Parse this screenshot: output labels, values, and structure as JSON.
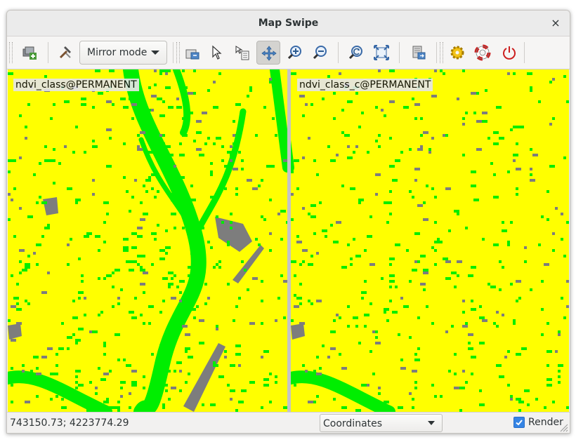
{
  "window": {
    "title": "Map Swipe",
    "close_glyph": "×"
  },
  "toolbar": {
    "items": [
      {
        "name": "add-raster-icon",
        "tooltip": ""
      },
      {
        "name": "tools-icon",
        "tooltip": ""
      },
      {
        "name": "query-icon",
        "tooltip": ""
      },
      {
        "name": "pointer-icon",
        "tooltip": ""
      },
      {
        "name": "select-layer-icon",
        "tooltip": ""
      },
      {
        "name": "pan-icon",
        "tooltip": ""
      },
      {
        "name": "zoom-in-icon",
        "tooltip": ""
      },
      {
        "name": "zoom-out-icon",
        "tooltip": ""
      },
      {
        "name": "zoom-back-icon",
        "tooltip": ""
      },
      {
        "name": "zoom-extent-icon",
        "tooltip": ""
      },
      {
        "name": "save-display-icon",
        "tooltip": ""
      },
      {
        "name": "settings-icon",
        "tooltip": ""
      },
      {
        "name": "help-icon",
        "tooltip": ""
      },
      {
        "name": "quit-icon",
        "tooltip": ""
      }
    ],
    "mode_dropdown": {
      "selected": "Mirror mode"
    }
  },
  "map": {
    "left_layer": "ndvi_class@PERMANENT",
    "right_layer": "ndvi_class_c@PERMANENT",
    "colors": {
      "background": "#ffff00",
      "vegetation": "#00ee00",
      "urban": "#7d7d7d"
    }
  },
  "statusbar": {
    "coordinates": "743150.73; 4223774.29",
    "format_selected": "Coordinates",
    "render_label": "Render",
    "render_checked": true
  }
}
